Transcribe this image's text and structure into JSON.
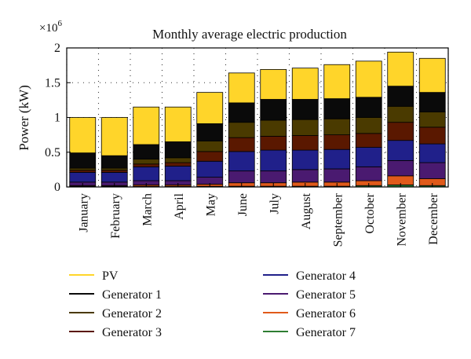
{
  "chart_data": {
    "type": "bar",
    "stacked": true,
    "title": "Monthly average electric production",
    "ylabel": "Power (kW)",
    "xlabel": "",
    "y_multiplier_label": "×10",
    "y_multiplier_exponent": "6",
    "ylim": [
      0,
      2
    ],
    "yticks": [
      0,
      0.5,
      1,
      1.5,
      2
    ],
    "ytick_labels": [
      "0",
      "0.5",
      "1",
      "1.5",
      "2"
    ],
    "grid": "dotted",
    "legend_position": "bottom",
    "categories": [
      "January",
      "February",
      "March",
      "April",
      "May",
      "June",
      "July",
      "August",
      "September",
      "October",
      "November",
      "December"
    ],
    "series": [
      {
        "name": "Generator 7",
        "color": "#2e7d32",
        "values": [
          0.01,
          0.01,
          0.01,
          0.01,
          0.01,
          0.01,
          0.01,
          0.01,
          0.01,
          0.02,
          0.03,
          0.02
        ]
      },
      {
        "name": "Generator 6",
        "color": "#e05a1a",
        "values": [
          0.01,
          0.01,
          0.02,
          0.02,
          0.03,
          0.05,
          0.05,
          0.06,
          0.06,
          0.07,
          0.13,
          0.1
        ]
      },
      {
        "name": "Generator 5",
        "color": "#4a1a70",
        "values": [
          0.05,
          0.05,
          0.06,
          0.06,
          0.1,
          0.17,
          0.17,
          0.18,
          0.19,
          0.2,
          0.22,
          0.23
        ]
      },
      {
        "name": "Generator 4",
        "color": "#20208a",
        "values": [
          0.14,
          0.14,
          0.2,
          0.21,
          0.23,
          0.28,
          0.3,
          0.28,
          0.28,
          0.28,
          0.29,
          0.27
        ]
      },
      {
        "name": "Generator 3",
        "color": "#5a1800",
        "values": [
          0.03,
          0.03,
          0.04,
          0.05,
          0.14,
          0.2,
          0.2,
          0.21,
          0.21,
          0.2,
          0.26,
          0.24
        ]
      },
      {
        "name": "Generator 2",
        "color": "#4a3a00",
        "values": [
          0.03,
          0.03,
          0.07,
          0.07,
          0.15,
          0.22,
          0.23,
          0.23,
          0.23,
          0.23,
          0.23,
          0.22
        ]
      },
      {
        "name": "Generator 1",
        "color": "#0a0a0a",
        "values": [
          0.22,
          0.18,
          0.21,
          0.23,
          0.25,
          0.28,
          0.3,
          0.29,
          0.29,
          0.29,
          0.29,
          0.28
        ]
      },
      {
        "name": "PV",
        "color": "#ffd52a",
        "values": [
          0.51,
          0.55,
          0.54,
          0.5,
          0.45,
          0.43,
          0.43,
          0.45,
          0.49,
          0.52,
          0.49,
          0.49
        ]
      }
    ],
    "legend_order": [
      "PV",
      "Generator 1",
      "Generator 2",
      "Generator 3",
      "Generator 4",
      "Generator 5",
      "Generator 6",
      "Generator 7"
    ]
  }
}
